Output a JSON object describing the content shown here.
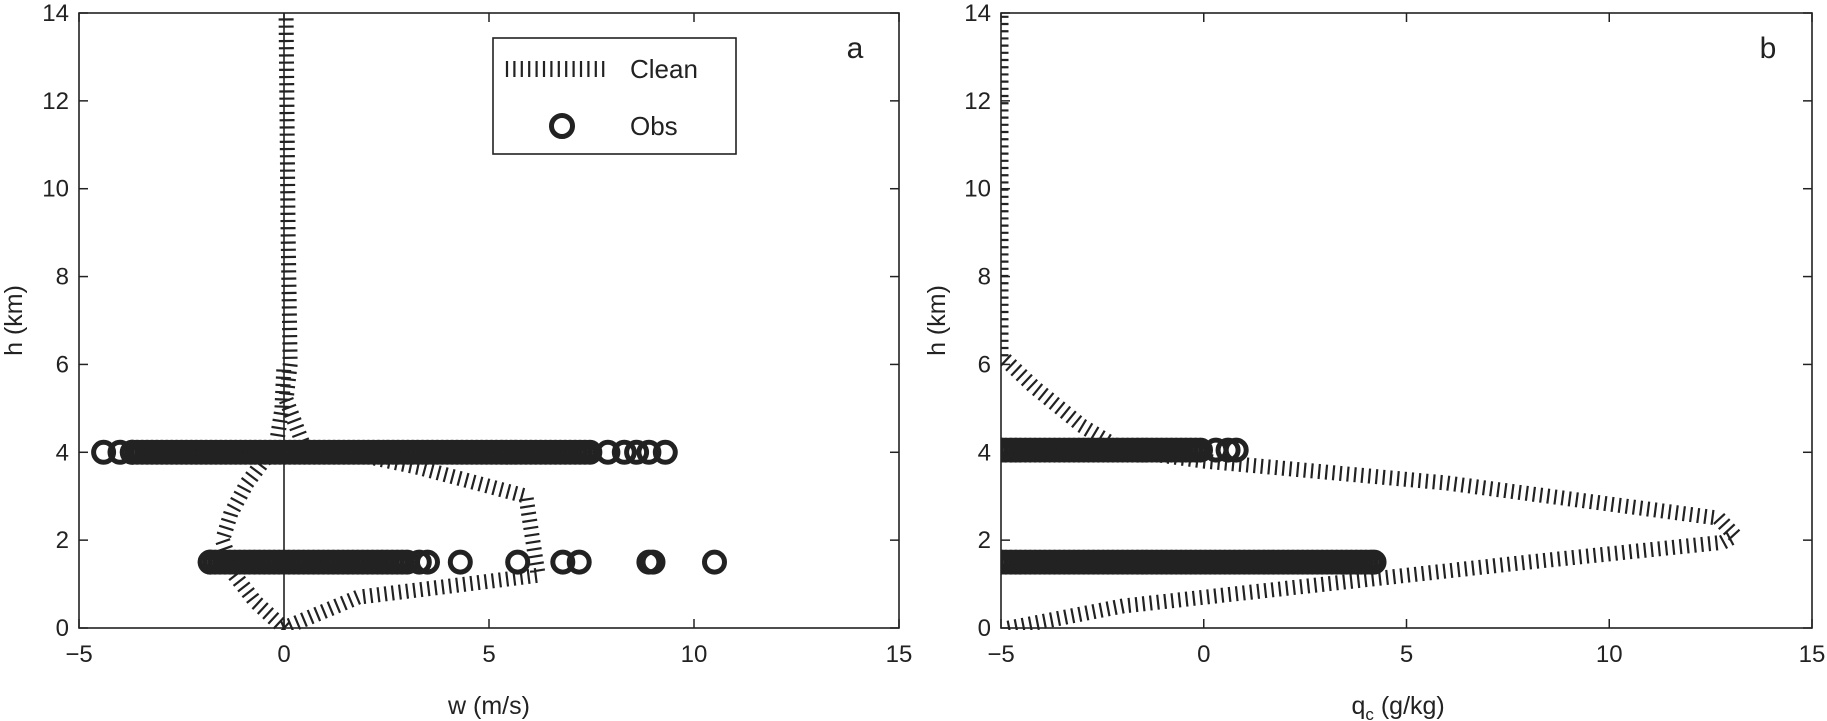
{
  "chart_data": [
    {
      "type": "line",
      "panel_label": "a",
      "xlabel": "w (m/s)",
      "ylabel": "h (km)",
      "xlim": [
        -5,
        15
      ],
      "ylim": [
        0,
        14
      ],
      "xticks": [
        -5,
        0,
        5,
        10,
        15
      ],
      "yticks": [
        0,
        2,
        4,
        6,
        8,
        10,
        12,
        14
      ],
      "xtick_labels": [
        "−5",
        "0",
        "5",
        "10",
        "15"
      ],
      "ytick_labels": [
        "0",
        "2",
        "4",
        "6",
        "8",
        "10",
        "12",
        "14"
      ],
      "grid": false,
      "legend": {
        "placement": "top-right",
        "entries": [
          {
            "label": "Clean",
            "marker": "hatched-line"
          },
          {
            "label": "Obs",
            "marker": "open-circle"
          }
        ]
      },
      "series": [
        {
          "name": "Clean",
          "style": "hatched-line",
          "segments": [
            {
              "x": [
                0.0,
                1.8,
                6.2,
                5.9,
                3.3,
                1.8,
                0.5,
                0.05,
                0.15,
                0.1,
                0.05
              ],
              "y": [
                0.0,
                0.7,
                1.2,
                3.0,
                3.65,
                3.95,
                4.1,
                5.2,
                6.0,
                9.0,
                14.0
              ]
            },
            {
              "x": [
                0.0,
                -0.7,
                -1.2,
                -1.5,
                -1.3,
                -0.9,
                -0.5,
                -0.2,
                -0.05,
                0.0
              ],
              "y": [
                0.0,
                0.6,
                1.2,
                2.0,
                2.6,
                3.3,
                3.8,
                4.1,
                5.0,
                6.0
              ]
            }
          ]
        },
        {
          "name": "Obs",
          "type": "scatter",
          "marker": "open-circle",
          "rows": [
            {
              "y": 4.0,
              "dense_from": -3.7,
              "dense_to": 7.5,
              "x": [
                -4.4,
                -4.0,
                -3.7,
                7.9,
                8.3,
                8.6,
                8.9,
                9.3
              ]
            },
            {
              "y": 1.5,
              "dense_from": -1.8,
              "dense_to": 3.1,
              "x": [
                -1.8,
                3.3,
                3.5,
                4.3,
                5.7,
                6.8,
                7.2,
                8.9,
                9.0,
                10.5
              ]
            }
          ]
        }
      ],
      "reference_line": {
        "x": 0
      }
    },
    {
      "type": "line",
      "panel_label": "b",
      "xlabel_main": "q",
      "xlabel_sub": "c",
      "xlabel_rest": " (g/kg)",
      "ylabel": "h (km)",
      "xlim": [
        -5,
        15
      ],
      "ylim": [
        0,
        14
      ],
      "xticks": [
        -5,
        0,
        5,
        10,
        15
      ],
      "yticks": [
        0,
        2,
        4,
        6,
        8,
        10,
        12,
        14
      ],
      "xtick_labels": [
        "−5",
        "0",
        "5",
        "10",
        "15"
      ],
      "ytick_labels": [
        "0",
        "2",
        "4",
        "6",
        "8",
        "10",
        "12",
        "14"
      ],
      "grid": false,
      "series": [
        {
          "name": "Clean",
          "style": "hatched-line",
          "segments": [
            {
              "x": [
                -4.8,
                -2.0,
                2.0,
                8.0,
                12.8,
                13.1,
                12.7,
                6.0,
                0.0,
                -2.0,
                -3.0,
                -4.2,
                -5.0,
                -5.0
              ],
              "y": [
                0.0,
                0.5,
                0.9,
                1.5,
                1.95,
                2.1,
                2.5,
                3.3,
                3.8,
                4.05,
                4.6,
                5.5,
                6.2,
                14.0
              ]
            }
          ]
        },
        {
          "name": "Obs",
          "type": "scatter",
          "marker": "open-circle",
          "rows": [
            {
              "y": 4.05,
              "dense_from": -5.0,
              "dense_to": 0.0,
              "x": [
                -5.0,
                0.3,
                0.6,
                0.8
              ]
            },
            {
              "y": 1.5,
              "dense_from": -5.0,
              "dense_to": 4.2,
              "x": [
                -5.0,
                4.2
              ]
            }
          ]
        }
      ]
    }
  ]
}
